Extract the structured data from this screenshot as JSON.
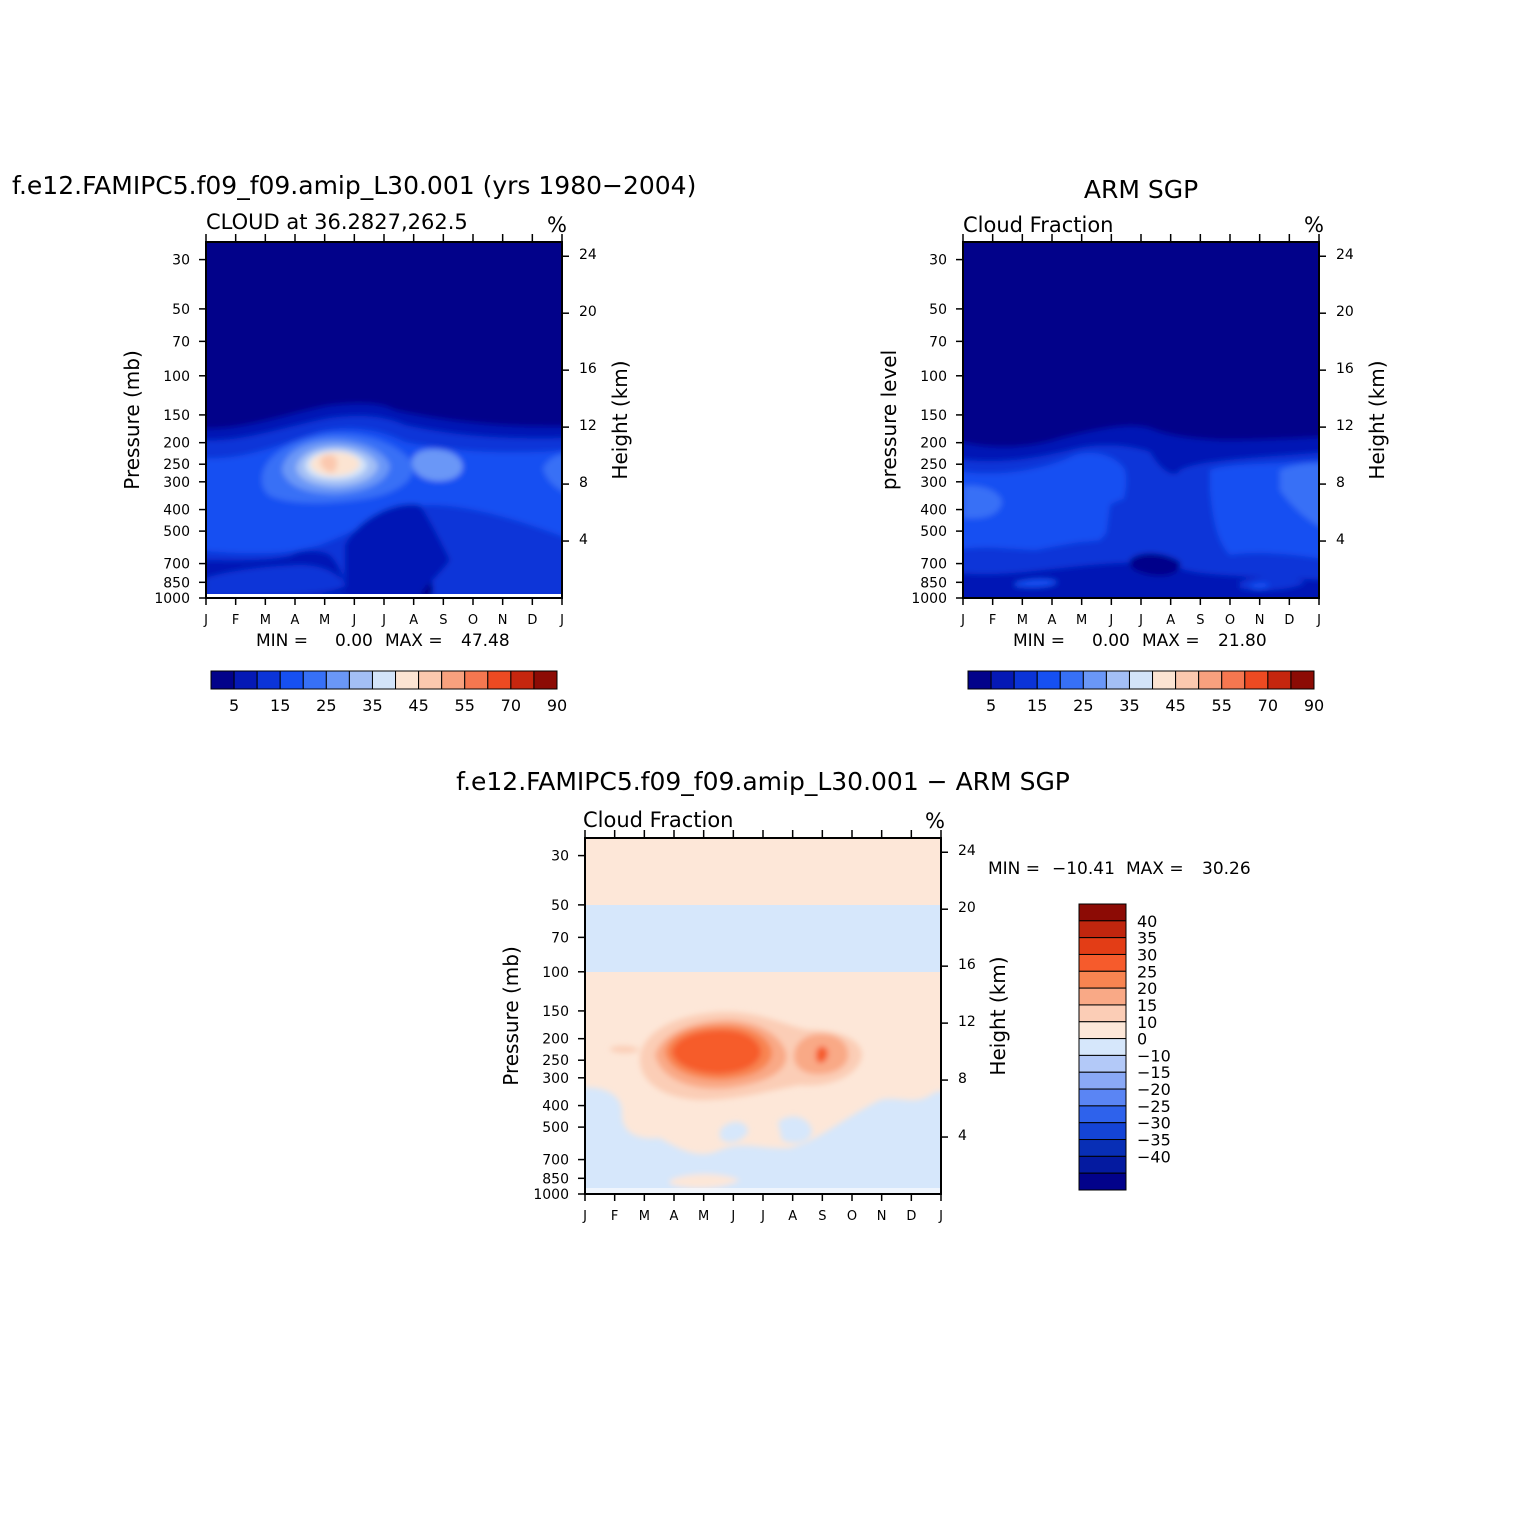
{
  "chart_data": [
    {
      "id": "model",
      "type": "contour",
      "title": "f.e12.FAMIPC5.f09_f09.amip_L30.001 (yrs 1980−2004)",
      "subtitle": "CLOUD at 36.2827,262.5",
      "units": "%",
      "ylabel": "Pressure (mb)",
      "ylabel_right": "Height (km)",
      "x_ticks": [
        "J",
        "F",
        "M",
        "A",
        "M",
        "J",
        "J",
        "A",
        "S",
        "O",
        "N",
        "D",
        "J"
      ],
      "y_ticks": [
        30,
        50,
        70,
        100,
        150,
        200,
        250,
        300,
        400,
        500,
        700,
        850,
        1000
      ],
      "y_log": true,
      "ylim": [
        1000,
        25
      ],
      "height_ticks": [
        24,
        20,
        16,
        12,
        8,
        4
      ],
      "min_label": "MIN =",
      "min_value": "0.00",
      "max_label": "MAX =",
      "max_value": "47.48",
      "colorbar_labels": [
        "5",
        "15",
        "25",
        "35",
        "45",
        "55",
        "70",
        "90"
      ],
      "features": [
        {
          "month": 4.2,
          "pressure": 240,
          "value": 47,
          "desc": "upper cloud maximum"
        },
        {
          "month": 8.0,
          "pressure": 245,
          "value": 28,
          "desc": "secondary maximum"
        }
      ]
    },
    {
      "id": "obs",
      "type": "contour",
      "title": "ARM SGP",
      "subtitle": "Cloud Fraction",
      "units": "%",
      "ylabel": "pressure level",
      "ylabel_right": "Height (km)",
      "x_ticks": [
        "J",
        "F",
        "M",
        "A",
        "M",
        "J",
        "J",
        "A",
        "S",
        "O",
        "N",
        "D",
        "J"
      ],
      "y_ticks": [
        30,
        50,
        70,
        100,
        150,
        200,
        250,
        300,
        400,
        500,
        700,
        850,
        1000
      ],
      "y_log": true,
      "ylim": [
        1000,
        25
      ],
      "height_ticks": [
        24,
        20,
        16,
        12,
        8,
        4
      ],
      "min_label": "MIN =",
      "min_value": "0.00",
      "max_label": "MAX =",
      "max_value": "21.80",
      "colorbar_labels": [
        "5",
        "15",
        "25",
        "35",
        "45",
        "55",
        "70",
        "90"
      ]
    },
    {
      "id": "diff",
      "type": "contour",
      "title": "f.e12.FAMIPC5.f09_f09.amip_L30.001 − ARM SGP",
      "subtitle": "Cloud Fraction",
      "units": "%",
      "ylabel": "Pressure (mb)",
      "ylabel_right": "Height (km)",
      "x_ticks": [
        "J",
        "F",
        "M",
        "A",
        "M",
        "J",
        "J",
        "A",
        "S",
        "O",
        "N",
        "D",
        "J"
      ],
      "y_ticks": [
        30,
        50,
        70,
        100,
        150,
        200,
        250,
        300,
        400,
        500,
        700,
        850,
        1000
      ],
      "y_log": true,
      "ylim": [
        1000,
        25
      ],
      "height_ticks": [
        24,
        20,
        16,
        12,
        8,
        4
      ],
      "min_label": "MIN =",
      "min_value": "−10.41",
      "max_label": "MAX =",
      "max_value": "30.26",
      "colorbar_labels": [
        "40",
        "35",
        "30",
        "25",
        "20",
        "15",
        "10",
        "0",
        "−10",
        "−15",
        "−20",
        "−25",
        "−30",
        "−35",
        "−40"
      ],
      "features": [
        {
          "month": 4.3,
          "pressure": 230,
          "value": 30,
          "desc": "positive bias maximum"
        },
        {
          "month": 8.0,
          "pressure": 235,
          "value": 22,
          "desc": "secondary positive bias"
        }
      ]
    }
  ],
  "colors": {
    "seq": [
      "#02028a",
      "#0519b5",
      "#0b34d8",
      "#1650f2",
      "#3770f6",
      "#6a97f7",
      "#a3bff5",
      "#d3e4f9",
      "#fce4d2",
      "#fbc8ae",
      "#f8a17e",
      "#f57750",
      "#ed4a22",
      "#c6260e",
      "#8c0b05"
    ],
    "div": [
      "#8c0b05",
      "#c0260e",
      "#e33d16",
      "#f65b2c",
      "#f88451",
      "#f9a986",
      "#fbcdb6",
      "#fde7d8",
      "#d6e7fb",
      "#b3c9f8",
      "#8aa9f6",
      "#5a85f4",
      "#2e62ec",
      "#1444d6",
      "#082fb6",
      "#041aa0",
      "#02028a"
    ]
  }
}
